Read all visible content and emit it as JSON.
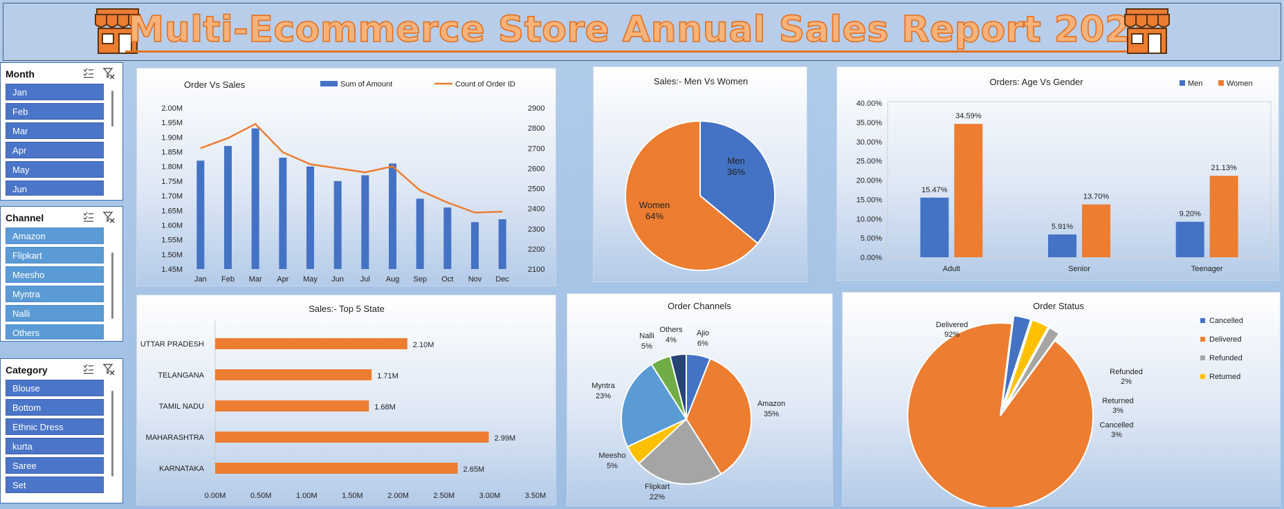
{
  "banner": {
    "title": "Multi-Ecommerce Store Annual Sales Report 2023"
  },
  "colors": {
    "blue": "#4472c4",
    "orange": "#ed7d31",
    "gray": "#a5a5a5",
    "yellow": "#ffc000",
    "lightblue": "#5b9bd5",
    "green": "#70ad47",
    "navy": "#264478"
  },
  "slicers": {
    "month": {
      "title": "Month",
      "items": [
        "Jan",
        "Feb",
        "Mar",
        "Apr",
        "May",
        "Jun"
      ]
    },
    "channel": {
      "title": "Channel",
      "items": [
        "Amazon",
        "Flipkart",
        "Meesho",
        "Myntra",
        "Nalli",
        "Others"
      ]
    },
    "category": {
      "title": "Category",
      "items": [
        "Blouse",
        "Bottom",
        "Ethnic Dress",
        "kurta",
        "Saree",
        "Set"
      ]
    }
  },
  "chart_data": [
    {
      "id": "order-vs-sales",
      "type": "bar",
      "title": "Order Vs Sales",
      "categories": [
        "Jan",
        "Feb",
        "Mar",
        "Apr",
        "May",
        "Jun",
        "Jul",
        "Aug",
        "Sep",
        "Oct",
        "Nov",
        "Dec"
      ],
      "series": [
        {
          "name": "Sum of Amount",
          "type": "bar",
          "axis": "left",
          "values": [
            1.82,
            1.87,
            1.93,
            1.83,
            1.8,
            1.75,
            1.77,
            1.81,
            1.69,
            1.66,
            1.61,
            1.62
          ]
        },
        {
          "name": "Count of Order ID",
          "type": "line",
          "axis": "right",
          "values": [
            2700,
            2750,
            2820,
            2680,
            2620,
            2600,
            2580,
            2610,
            2490,
            2430,
            2380,
            2385
          ]
        }
      ],
      "ylim": [
        1.45,
        2.0
      ],
      "y_ticks": [
        "2.00M",
        "1.95M",
        "1.90M",
        "1.85M",
        "1.80M",
        "1.75M",
        "1.70M",
        "1.65M",
        "1.60M",
        "1.55M",
        "1.50M",
        "1.45M"
      ],
      "y2lim": [
        2100,
        2900
      ],
      "y2_ticks": [
        "2900",
        "2800",
        "2700",
        "2600",
        "2500",
        "2400",
        "2300",
        "2200",
        "2100"
      ],
      "legend": "top"
    },
    {
      "id": "sales-men-women",
      "type": "pie",
      "title": "Sales:- Men Vs Women",
      "labels": [
        "Men",
        "Women"
      ],
      "values": [
        36,
        64
      ],
      "value_labels": [
        "36%",
        "64%"
      ]
    },
    {
      "id": "orders-age-gender",
      "type": "bar",
      "title": "Orders: Age Vs Gender",
      "categories": [
        "Adult",
        "Senior",
        "Teenager"
      ],
      "series": [
        {
          "name": "Men",
          "values": [
            15.47,
            5.91,
            9.2
          ],
          "labels": [
            "15.47%",
            "5.91%",
            "9.20%"
          ]
        },
        {
          "name": "Women",
          "values": [
            34.59,
            13.7,
            21.13
          ],
          "labels": [
            "34.59%",
            "13.70%",
            "21.13%"
          ]
        }
      ],
      "ylim": [
        0,
        40
      ],
      "y_ticks": [
        "40.00%",
        "35.00%",
        "30.00%",
        "25.00%",
        "20.00%",
        "15.00%",
        "10.00%",
        "5.00%",
        "0.00%"
      ],
      "legend": "top-right"
    },
    {
      "id": "top-5-state",
      "type": "bar",
      "orientation": "horizontal",
      "title": "Sales:- Top 5 State",
      "categories": [
        "UTTAR PRADESH",
        "TELANGANA",
        "TAMIL NADU",
        "MAHARASHTRA",
        "KARNATAKA"
      ],
      "values": [
        2.1,
        1.71,
        1.68,
        2.99,
        2.65
      ],
      "value_labels": [
        "2.10M",
        "1.71M",
        "1.68M",
        "2.99M",
        "2.65M"
      ],
      "xlim": [
        0,
        3.5
      ],
      "x_ticks": [
        "0.00M",
        "0.50M",
        "1.00M",
        "1.50M",
        "2.00M",
        "2.50M",
        "3.00M",
        "3.50M"
      ]
    },
    {
      "id": "order-channels",
      "type": "pie",
      "title": "Order Channels",
      "labels": [
        "Ajio",
        "Amazon",
        "Flipkart",
        "Meesho",
        "Myntra",
        "Nalli",
        "Others"
      ],
      "values": [
        6,
        35,
        22,
        5,
        23,
        5,
        4
      ],
      "value_labels": [
        "6%",
        "35%",
        "22%",
        "5%",
        "23%",
        "5%",
        "4%"
      ]
    },
    {
      "id": "order-status",
      "type": "pie",
      "title": "Order Status",
      "labels": [
        "Delivered",
        "Cancelled",
        "Returned",
        "Refunded"
      ],
      "values": [
        92,
        3,
        3,
        2
      ],
      "value_labels": [
        "92%",
        "3%",
        "3%",
        "2%"
      ],
      "legend_items": [
        "Cancelled",
        "Delivered",
        "Refunded",
        "Returned"
      ],
      "legend": "right"
    }
  ]
}
